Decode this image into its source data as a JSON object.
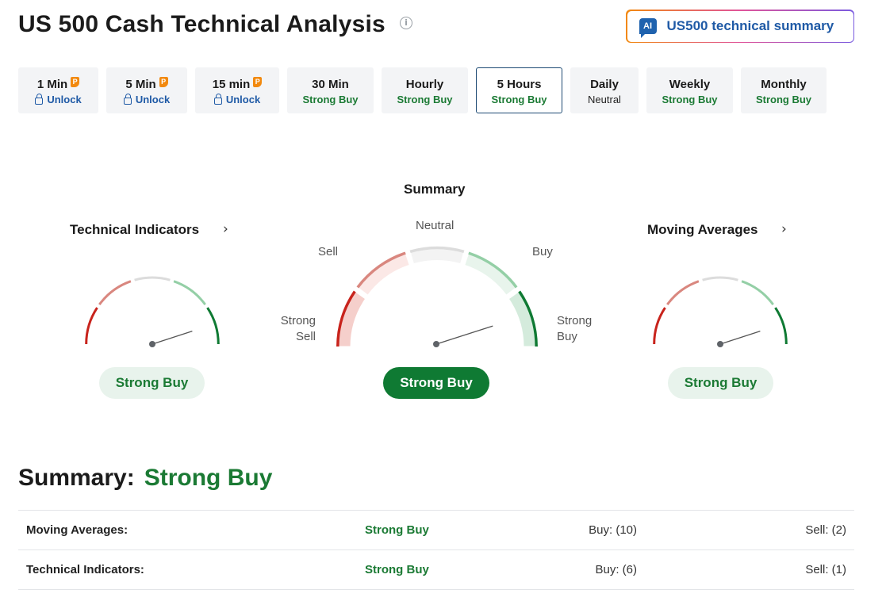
{
  "header": {
    "title": "US 500 Cash Technical Analysis",
    "ai_button_badge": "AI",
    "ai_button_label": "US500 technical summary"
  },
  "timeframes": [
    {
      "name": "1 Min",
      "status": "Unlock",
      "premium": true
    },
    {
      "name": "5 Min",
      "status": "Unlock",
      "premium": true
    },
    {
      "name": "15 min",
      "status": "Unlock",
      "premium": true
    },
    {
      "name": "30 Min",
      "status": "Strong Buy"
    },
    {
      "name": "Hourly",
      "status": "Strong Buy"
    },
    {
      "name": "5 Hours",
      "status": "Strong Buy",
      "active": true
    },
    {
      "name": "Daily",
      "status": "Neutral"
    },
    {
      "name": "Weekly",
      "status": "Strong Buy"
    },
    {
      "name": "Monthly",
      "status": "Strong Buy"
    }
  ],
  "gauges": {
    "technical_indicators": {
      "title": "Technical Indicators",
      "result": "Strong Buy"
    },
    "summary": {
      "title": "Summary",
      "result": "Strong Buy",
      "labels": {
        "strong_sell_1": "Strong",
        "strong_sell_2": "Sell",
        "sell": "Sell",
        "neutral": "Neutral",
        "buy": "Buy",
        "strong_buy_1": "Strong",
        "strong_buy_2": "Buy"
      }
    },
    "moving_averages": {
      "title": "Moving Averages",
      "result": "Strong Buy"
    }
  },
  "summary": {
    "label": "Summary:",
    "value": "Strong Buy",
    "rows": [
      {
        "name": "Moving Averages:",
        "signal": "Strong Buy",
        "buy": "Buy: (10)",
        "sell": "Sell: (2)"
      },
      {
        "name": "Technical Indicators:",
        "signal": "Strong Buy",
        "buy": "Buy: (6)",
        "sell": "Sell: (1)"
      }
    ]
  },
  "colors": {
    "strong_sell": "#c8231c",
    "sell": "#d9877f",
    "neutral": "#dcdcdc",
    "buy": "#94cfa6",
    "strong_buy": "#0f7a33",
    "brand_blue": "#1f5aa6"
  },
  "icons": {
    "info": "info-circle-icon",
    "premium": "premium-p-icon",
    "lock": "lock-icon",
    "chevron": "chevron-right-icon"
  }
}
